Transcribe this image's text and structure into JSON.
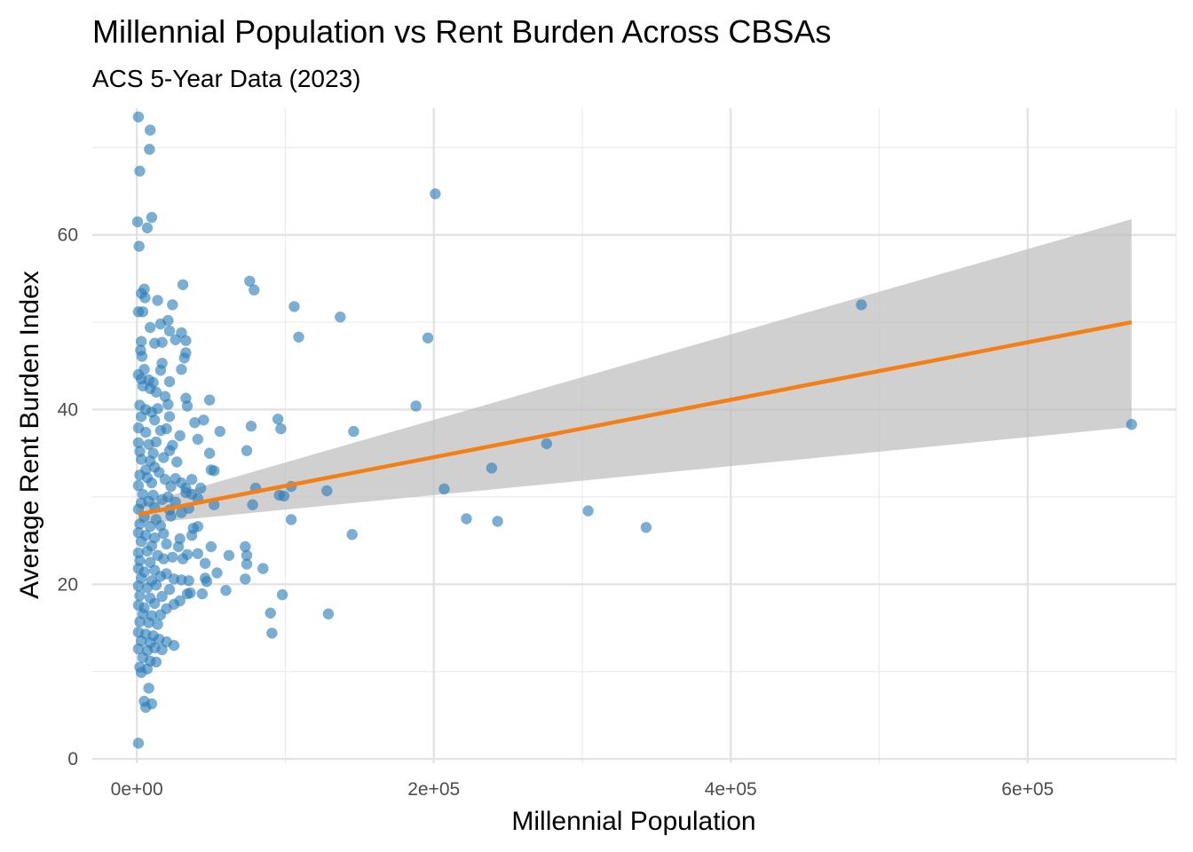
{
  "chart_data": {
    "type": "scatter",
    "title": "Millennial Population vs Rent Burden Across CBSAs",
    "subtitle": "ACS 5-Year Data (2023)",
    "xlabel": "Millennial Population",
    "ylabel": "Average Rent Burden Index",
    "xlim": [
      -30000,
      700000
    ],
    "ylim": [
      -0.5,
      74.5
    ],
    "x_ticks": [
      0,
      200000,
      400000,
      600000
    ],
    "x_tick_labels": [
      "0e+00",
      "2e+05",
      "4e+05",
      "6e+05"
    ],
    "y_ticks": [
      0,
      20,
      40,
      60
    ],
    "y_tick_labels": [
      "0",
      "20",
      "40",
      "60"
    ],
    "grid": true,
    "legend": "none",
    "point_color": "#2A7DB8",
    "trend": {
      "x": [
        1000,
        670000
      ],
      "y": [
        28.0,
        50.0
      ],
      "color": "#F57F17",
      "ci_lower": [
        26.9,
        38.0
      ],
      "ci_upper": [
        29.1,
        61.8
      ],
      "ci_color": "#BEBEBE"
    },
    "points": [
      [
        1000,
        73.5
      ],
      [
        9000,
        72.0
      ],
      [
        8500,
        69.8
      ],
      [
        2000,
        67.3
      ],
      [
        10000,
        62.0
      ],
      [
        500,
        61.5
      ],
      [
        7000,
        60.8
      ],
      [
        1500,
        58.7
      ],
      [
        5000,
        53.8
      ],
      [
        3000,
        53.3
      ],
      [
        5500,
        52.8
      ],
      [
        14000,
        52.5
      ],
      [
        24000,
        52.0
      ],
      [
        1000,
        51.2
      ],
      [
        4000,
        51.2
      ],
      [
        31000,
        54.3
      ],
      [
        76000,
        54.7
      ],
      [
        79000,
        53.7
      ],
      [
        106000,
        51.8
      ],
      [
        137000,
        50.6
      ],
      [
        109000,
        48.3
      ],
      [
        196000,
        48.2
      ],
      [
        201000,
        64.7
      ],
      [
        488000,
        52.0
      ],
      [
        16000,
        49.8
      ],
      [
        21000,
        50.2
      ],
      [
        9000,
        49.4
      ],
      [
        22000,
        49.0
      ],
      [
        30000,
        48.8
      ],
      [
        3000,
        47.8
      ],
      [
        26000,
        48.0
      ],
      [
        12000,
        47.6
      ],
      [
        17000,
        47.7
      ],
      [
        33000,
        47.9
      ],
      [
        2500,
        46.8
      ],
      [
        33000,
        46.5
      ],
      [
        3500,
        46.1
      ],
      [
        32000,
        45.9
      ],
      [
        17000,
        45.3
      ],
      [
        1000,
        44.0
      ],
      [
        5000,
        44.6
      ],
      [
        16000,
        44.5
      ],
      [
        30000,
        44.6
      ],
      [
        3000,
        43.5
      ],
      [
        8000,
        43.4
      ],
      [
        11000,
        43.1
      ],
      [
        22000,
        43.2
      ],
      [
        4000,
        42.7
      ],
      [
        9000,
        42.4
      ],
      [
        13000,
        42.0
      ],
      [
        19000,
        41.5
      ],
      [
        33000,
        41.3
      ],
      [
        49000,
        41.1
      ],
      [
        2000,
        40.5
      ],
      [
        6000,
        40.0
      ],
      [
        10000,
        39.7
      ],
      [
        14000,
        40.1
      ],
      [
        21000,
        40.6
      ],
      [
        34000,
        40.4
      ],
      [
        3000,
        39.2
      ],
      [
        12000,
        38.8
      ],
      [
        22000,
        39.2
      ],
      [
        45000,
        38.8
      ],
      [
        39000,
        38.5
      ],
      [
        77000,
        38.1
      ],
      [
        95000,
        38.9
      ],
      [
        97000,
        37.8
      ],
      [
        146000,
        37.5
      ],
      [
        188000,
        40.4
      ],
      [
        670000,
        38.3
      ],
      [
        1000,
        37.9
      ],
      [
        6000,
        37.4
      ],
      [
        16000,
        37.6
      ],
      [
        20000,
        37.8
      ],
      [
        29000,
        37.0
      ],
      [
        1000,
        36.2
      ],
      [
        8000,
        36.0
      ],
      [
        13000,
        36.3
      ],
      [
        24000,
        35.9
      ],
      [
        41000,
        36.6
      ],
      [
        56000,
        37.5
      ],
      [
        74000,
        35.3
      ],
      [
        2000,
        35.2
      ],
      [
        11000,
        35.0
      ],
      [
        22000,
        35.3
      ],
      [
        49000,
        35.0
      ],
      [
        276000,
        36.1
      ],
      [
        3000,
        34.3
      ],
      [
        9000,
        34.1
      ],
      [
        18000,
        34.5
      ],
      [
        27000,
        34.0
      ],
      [
        6000,
        33.1
      ],
      [
        12000,
        33.4
      ],
      [
        50000,
        33.1
      ],
      [
        52000,
        33.0
      ],
      [
        239000,
        33.3
      ],
      [
        2000,
        32.5
      ],
      [
        7000,
        32.2
      ],
      [
        15000,
        32.8
      ],
      [
        19000,
        32.0
      ],
      [
        26000,
        32.1
      ],
      [
        37000,
        32.0
      ],
      [
        1000,
        31.3
      ],
      [
        10000,
        31.6
      ],
      [
        23000,
        31.2
      ],
      [
        33000,
        31.0
      ],
      [
        43000,
        31.0
      ],
      [
        30000,
        31.6
      ],
      [
        80000,
        31.0
      ],
      [
        104000,
        31.2
      ],
      [
        128000,
        30.7
      ],
      [
        207000,
        30.9
      ],
      [
        4000,
        30.3
      ],
      [
        11000,
        30.2
      ],
      [
        21000,
        30.0
      ],
      [
        33000,
        30.5
      ],
      [
        37000,
        30.3
      ],
      [
        96000,
        30.2
      ],
      [
        99000,
        30.1
      ],
      [
        3000,
        29.3
      ],
      [
        8000,
        29.5
      ],
      [
        17000,
        29.7
      ],
      [
        26000,
        29.4
      ],
      [
        41000,
        29.8
      ],
      [
        52000,
        29.1
      ],
      [
        78000,
        29.1
      ],
      [
        1000,
        28.6
      ],
      [
        12000,
        28.8
      ],
      [
        22000,
        28.5
      ],
      [
        30000,
        28.2
      ],
      [
        35000,
        28.7
      ],
      [
        5000,
        27.7
      ],
      [
        13000,
        27.4
      ],
      [
        23000,
        27.8
      ],
      [
        104000,
        27.4
      ],
      [
        222000,
        27.5
      ],
      [
        243000,
        27.2
      ],
      [
        304000,
        28.4
      ],
      [
        343000,
        26.5
      ],
      [
        2000,
        26.9
      ],
      [
        9000,
        26.6
      ],
      [
        16000,
        26.7
      ],
      [
        41000,
        26.6
      ],
      [
        38000,
        26.4
      ],
      [
        1000,
        25.9
      ],
      [
        6000,
        25.6
      ],
      [
        12000,
        25.3
      ],
      [
        18000,
        25.8
      ],
      [
        29000,
        25.2
      ],
      [
        37000,
        25.6
      ],
      [
        145000,
        25.7
      ],
      [
        3000,
        24.9
      ],
      [
        10000,
        24.4
      ],
      [
        20000,
        24.6
      ],
      [
        28000,
        24.3
      ],
      [
        50000,
        24.3
      ],
      [
        73000,
        24.3
      ],
      [
        1000,
        23.6
      ],
      [
        7000,
        23.8
      ],
      [
        14000,
        23.3
      ],
      [
        24000,
        23.1
      ],
      [
        34000,
        23.4
      ],
      [
        41000,
        23.5
      ],
      [
        62000,
        23.3
      ],
      [
        74000,
        23.3
      ],
      [
        2000,
        22.7
      ],
      [
        9000,
        22.5
      ],
      [
        18000,
        22.9
      ],
      [
        31000,
        22.9
      ],
      [
        46000,
        22.4
      ],
      [
        74000,
        22.3
      ],
      [
        85000,
        21.8
      ],
      [
        1000,
        21.8
      ],
      [
        5000,
        21.4
      ],
      [
        12000,
        21.6
      ],
      [
        20000,
        21.2
      ],
      [
        54000,
        21.3
      ],
      [
        3000,
        20.7
      ],
      [
        10000,
        20.4
      ],
      [
        16000,
        20.9
      ],
      [
        25000,
        20.6
      ],
      [
        30000,
        20.5
      ],
      [
        35000,
        20.4
      ],
      [
        46000,
        20.7
      ],
      [
        47000,
        20.3
      ],
      [
        73000,
        20.6
      ],
      [
        1000,
        19.8
      ],
      [
        7000,
        19.6
      ],
      [
        13000,
        19.9
      ],
      [
        22000,
        19.4
      ],
      [
        36000,
        19.0
      ],
      [
        60000,
        19.3
      ],
      [
        98000,
        18.8
      ],
      [
        44000,
        18.9
      ],
      [
        2000,
        18.7
      ],
      [
        9000,
        18.4
      ],
      [
        17000,
        18.6
      ],
      [
        29000,
        18.1
      ],
      [
        34000,
        18.9
      ],
      [
        1000,
        17.6
      ],
      [
        5000,
        17.3
      ],
      [
        12000,
        17.8
      ],
      [
        20000,
        17.2
      ],
      [
        25000,
        17.7
      ],
      [
        4000,
        16.6
      ],
      [
        10000,
        16.4
      ],
      [
        16000,
        16.5
      ],
      [
        90000,
        16.7
      ],
      [
        129000,
        16.6
      ],
      [
        2000,
        15.7
      ],
      [
        8000,
        15.6
      ],
      [
        14000,
        15.4
      ],
      [
        1000,
        14.5
      ],
      [
        6000,
        14.3
      ],
      [
        11000,
        14.1
      ],
      [
        91000,
        14.4
      ],
      [
        3000,
        13.5
      ],
      [
        9000,
        13.3
      ],
      [
        15000,
        13.7
      ],
      [
        20000,
        13.4
      ],
      [
        25000,
        13.0
      ],
      [
        1000,
        12.6
      ],
      [
        7000,
        12.4
      ],
      [
        12000,
        12.7
      ],
      [
        17000,
        12.5
      ],
      [
        4000,
        11.6
      ],
      [
        9000,
        11.2
      ],
      [
        13000,
        11.1
      ],
      [
        2000,
        10.5
      ],
      [
        7000,
        10.3
      ],
      [
        3000,
        9.9
      ],
      [
        8000,
        8.1
      ],
      [
        5000,
        6.6
      ],
      [
        10000,
        6.3
      ],
      [
        6000,
        5.9
      ],
      [
        1000,
        1.8
      ]
    ]
  }
}
